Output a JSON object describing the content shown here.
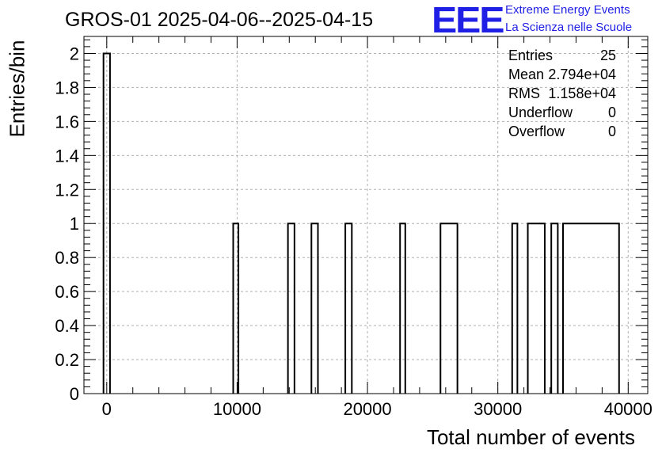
{
  "chart_data": {
    "type": "histogram",
    "title": "GROS-01 2025-04-06--2025-04-15",
    "xlabel": "Total number of events",
    "ylabel": "Entries/bin",
    "xlim": [
      -1750,
      41500
    ],
    "ylim": [
      0,
      2.1
    ],
    "grid": true,
    "x_ticks": [
      0,
      10000,
      20000,
      30000,
      40000
    ],
    "y_ticks": [
      0,
      0.2,
      0.4,
      0.6,
      0.8,
      1,
      1.2,
      1.4,
      1.6,
      1.8,
      2
    ],
    "bins": [
      {
        "start": -250,
        "end": 250,
        "value": 2
      },
      {
        "start": 9700,
        "end": 10100,
        "value": 1
      },
      {
        "start": 13900,
        "end": 14400,
        "value": 1
      },
      {
        "start": 15700,
        "end": 16200,
        "value": 1
      },
      {
        "start": 18300,
        "end": 18800,
        "value": 1
      },
      {
        "start": 22500,
        "end": 22900,
        "value": 1
      },
      {
        "start": 25600,
        "end": 26900,
        "value": 1
      },
      {
        "start": 31100,
        "end": 31500,
        "value": 1
      },
      {
        "start": 32300,
        "end": 33600,
        "value": 1
      },
      {
        "start": 34100,
        "end": 34600,
        "value": 1
      },
      {
        "start": 35000,
        "end": 39300,
        "value": 1
      }
    ],
    "stats": [
      {
        "label": "Entries",
        "value": "25"
      },
      {
        "label": "Mean",
        "value": "2.794e+04"
      },
      {
        "label": "RMS",
        "value": "1.158e+04"
      },
      {
        "label": "Underflow",
        "value": "0"
      },
      {
        "label": "Overflow",
        "value": "0"
      }
    ]
  },
  "logo": {
    "mark": "EEE",
    "line1": "Extreme Energy Events",
    "line2": "La Scienza nelle Scuole",
    "color": "#1f1fe6"
  }
}
